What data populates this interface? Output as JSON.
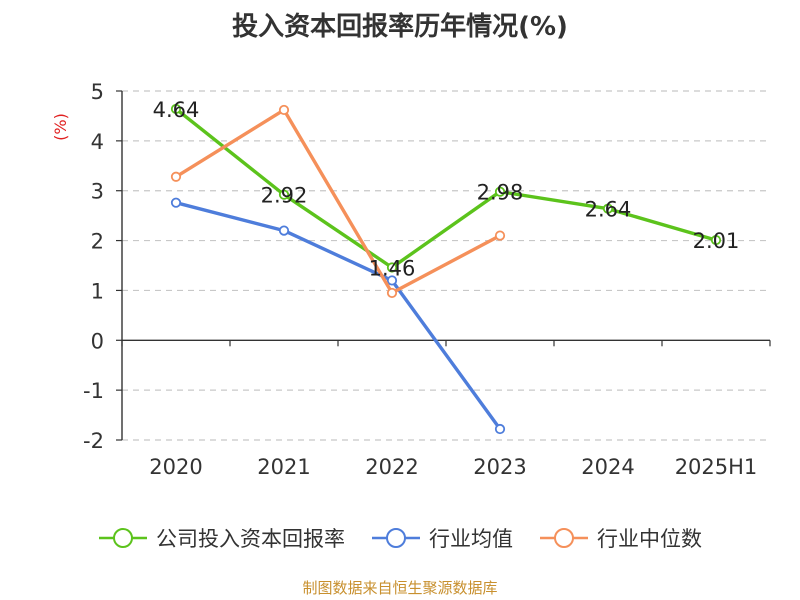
{
  "title": "投入资本回报率历年情况(%)",
  "source": "制图数据来自恒生聚源数据库",
  "chart_data": {
    "type": "line",
    "title": "投入资本回报率历年情况(%)",
    "ylabel": "(%)",
    "xlabel": "",
    "categories": [
      "2020",
      "2021",
      "2022",
      "2023",
      "2024",
      "2025H1"
    ],
    "ylim": [
      -2,
      5
    ],
    "yticks": [
      5,
      4,
      3,
      2,
      1,
      0,
      -1,
      -2
    ],
    "grid": true,
    "legend_position": "bottom",
    "series": [
      {
        "name": "公司投入资本回报率",
        "color": "#5cc31c",
        "values": [
          4.64,
          2.92,
          1.46,
          2.98,
          2.64,
          2.01
        ],
        "labels": [
          "4.64",
          "2.92",
          "1.46",
          "2.98",
          "2.64",
          "2.01"
        ]
      },
      {
        "name": "行业均值",
        "color": "#4e7ddb",
        "values": [
          2.76,
          2.2,
          1.2,
          -1.78,
          null,
          null
        ]
      },
      {
        "name": "行业中位数",
        "color": "#f5905a",
        "values": [
          3.28,
          4.62,
          0.95,
          2.1,
          null,
          null
        ]
      }
    ]
  }
}
